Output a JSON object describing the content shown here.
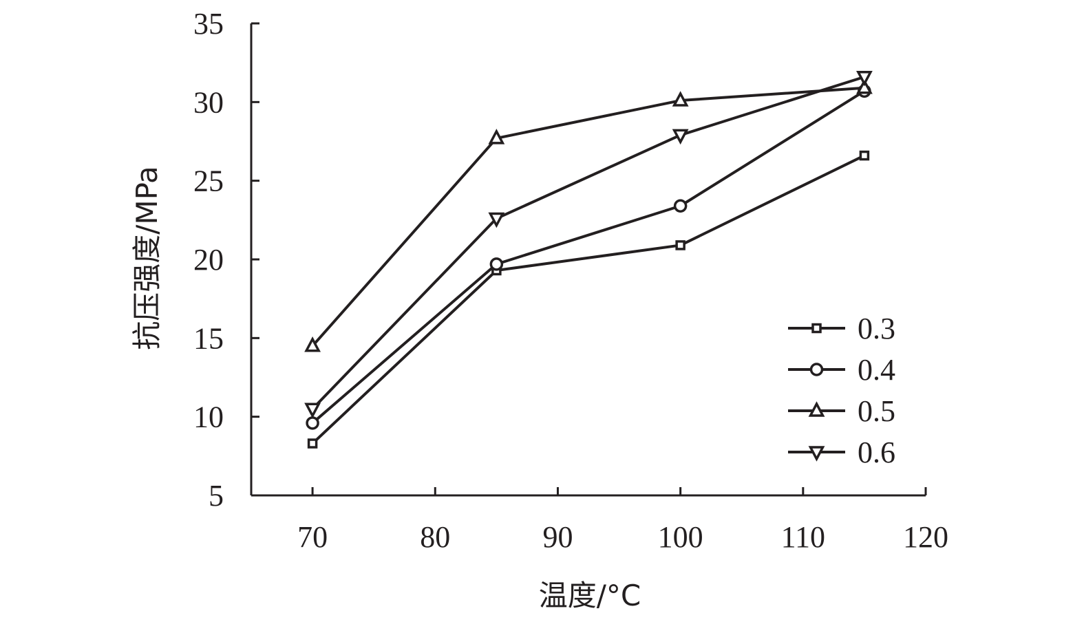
{
  "chart_data": {
    "type": "line",
    "title": "",
    "xlabel": "温度/°C",
    "ylabel": "抗压强度/MPa",
    "xlim": [
      65,
      120
    ],
    "ylim": [
      5,
      35
    ],
    "xticks": [
      70,
      80,
      90,
      100,
      110,
      120
    ],
    "yticks": [
      5,
      10,
      15,
      20,
      25,
      30,
      35
    ],
    "x": [
      70,
      85,
      100,
      115
    ],
    "grid": false,
    "legend_position": "bottom-right",
    "line_color": "#231f20",
    "series": [
      {
        "name": "0.3",
        "marker": "square",
        "values": [
          8.3,
          19.3,
          20.9,
          26.6
        ]
      },
      {
        "name": "0.4",
        "marker": "circle",
        "values": [
          9.6,
          19.7,
          23.4,
          30.7
        ]
      },
      {
        "name": "0.5",
        "marker": "triangle-up",
        "values": [
          14.5,
          27.7,
          30.1,
          30.9
        ]
      },
      {
        "name": "0.6",
        "marker": "triangle-down",
        "values": [
          10.5,
          22.6,
          27.9,
          31.6
        ]
      }
    ]
  }
}
